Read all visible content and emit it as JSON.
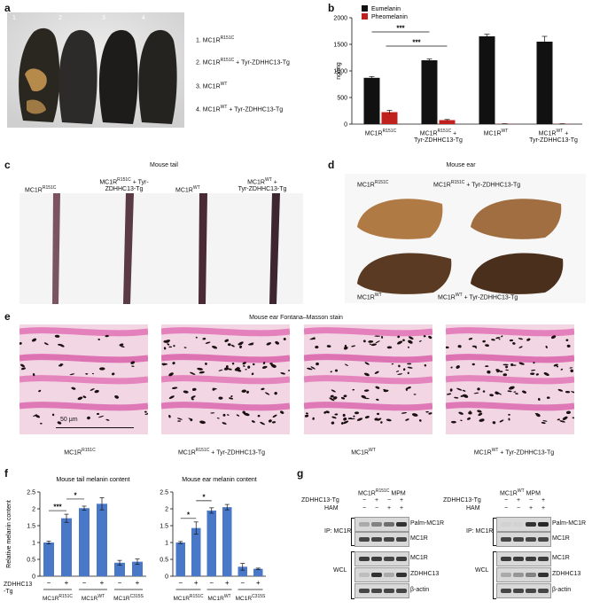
{
  "panels": {
    "a": {
      "label": "a",
      "mouse_numbers": [
        "1",
        "2",
        "3",
        "4"
      ],
      "legend": [
        {
          "num": "1.",
          "base": "MC1R",
          "sup": "R151C",
          "suffix": ""
        },
        {
          "num": "2.",
          "base": "MC1R",
          "sup": "R151C",
          "suffix": " + Tyr-ZDHHC13-Tg"
        },
        {
          "num": "3.",
          "base": "MC1R",
          "sup": "WT",
          "suffix": ""
        },
        {
          "num": "4.",
          "base": "MC1R",
          "sup": "WT",
          "suffix": " + Tyr-ZDHHC13-Tg"
        }
      ]
    },
    "b": {
      "label": "b",
      "significance": [
        "***",
        "***"
      ]
    },
    "c": {
      "label": "c",
      "title": "Mouse tail",
      "labels": [
        {
          "l1": "MC1R",
          "s1": "R151C",
          "l2": ""
        },
        {
          "l1": "MC1R",
          "s1": "R151C",
          "l1b": " + Tyr-",
          "l2": "ZDHHC13-Tg"
        },
        {
          "l1": "MC1R",
          "s1": "WT",
          "l2": ""
        },
        {
          "l1": "MC1R",
          "s1": "WT",
          "l1b": " +",
          "l2": "Tyr-ZDHHC13-Tg"
        }
      ]
    },
    "d": {
      "label": "d",
      "title": "Mouse ear",
      "labels": [
        {
          "base": "MC1R",
          "sup": "R151C",
          "suffix": ""
        },
        {
          "base": "MC1R",
          "sup": "R151C",
          "suffix": " + Tyr-ZDHHC13-Tg"
        },
        {
          "base": "MC1R",
          "sup": "WT",
          "suffix": ""
        },
        {
          "base": "MC1R",
          "sup": "WT",
          "suffix": " + Tyr-ZDHHC13-Tg"
        }
      ]
    },
    "e": {
      "label": "e",
      "title": "Mouse ear Fontana–Masson stain",
      "scale_bar": "50 μm",
      "labels": [
        {
          "base": "MC1R",
          "sup": "R151C",
          "suffix": ""
        },
        {
          "base": "MC1R",
          "sup": "R151C",
          "suffix": " + Tyr-ZDHHC13-Tg"
        },
        {
          "base": "MC1R",
          "sup": "WT",
          "suffix": ""
        },
        {
          "base": "MC1R",
          "sup": "WT",
          "suffix": " + Tyr-ZDHHC13-Tg"
        }
      ]
    },
    "f": {
      "label": "f",
      "row_label_1": "ZDHHC13",
      "row_label_2": "-Tg",
      "signs": [
        "−",
        "+",
        "−",
        "+",
        "−",
        "+"
      ],
      "group_labels": [
        {
          "base": "MC1R",
          "sup": "R151C"
        },
        {
          "base": "MC1R",
          "sup": "WT"
        },
        {
          "base": "MC1R",
          "sup": "C315S"
        }
      ]
    },
    "g": {
      "label": "g",
      "blots": [
        {
          "title_base": "MC1R",
          "title_sup": "R151C",
          "title_suffix": " MPM",
          "row_labels": [
            "ZDHHC13-Tg",
            "HAM"
          ],
          "zdhhc_signs": [
            "−",
            "+",
            "−",
            "+"
          ],
          "ham_signs": [
            "−",
            "−",
            "+",
            "+"
          ],
          "ip_label": "IP: MC1R",
          "wcl_label": "WCL",
          "band_labels": [
            "Palm-MC1R",
            "MC1R",
            "MC1R",
            "ZDHHC13",
            "β-actin"
          ]
        },
        {
          "title_base": "MC1R",
          "title_sup": "WT",
          "title_suffix": " MPM",
          "row_labels": [
            "ZDHHC13-Tg",
            "HAM"
          ],
          "zdhhc_signs": [
            "−",
            "+",
            "−",
            "+"
          ],
          "ham_signs": [
            "−",
            "−",
            "+",
            "+"
          ],
          "ip_label": "IP: MC1R",
          "wcl_label": "WCL",
          "band_labels": [
            "Palm-MC1R",
            "MC1R",
            "MC1R",
            "ZDHHC13",
            "β-actin"
          ]
        }
      ]
    }
  },
  "chart_data": [
    {
      "type": "bar",
      "panel": "b",
      "ylabel": "ng/mg",
      "ylim": [
        0,
        2000
      ],
      "yticks": [
        0,
        500,
        1000,
        1500,
        2000
      ],
      "categories": [
        "MC1R^R151C",
        "MC1R^R151C + Tyr-ZDHHC13-Tg",
        "MC1R^WT",
        "MC1R^WT + Tyr-ZDHHC13-Tg"
      ],
      "category_labels": [
        {
          "l1": "MC1R",
          "s1": "R151C",
          "l2": ""
        },
        {
          "l1": "MC1R",
          "s1": "R151C",
          "l1b": " +",
          "l2": "Tyr-ZDHHC13-Tg"
        },
        {
          "l1": "MC1R",
          "s1": "WT",
          "l2": ""
        },
        {
          "l1": "MC1R",
          "s1": "WT",
          "l1b": " +",
          "l2": "Tyr-ZDHHC13-Tg"
        }
      ],
      "legend_position": "top-left",
      "series": [
        {
          "name": "Eumelanin",
          "color": "#111111",
          "values": [
            870,
            1200,
            1650,
            1550
          ],
          "errors": [
            25,
            25,
            40,
            100
          ]
        },
        {
          "name": "Pheomelanin",
          "color": "#c0201e",
          "values": [
            225,
            75,
            5,
            5
          ],
          "errors": [
            35,
            12,
            2,
            2
          ]
        }
      ]
    },
    {
      "type": "bar",
      "panel": "f-left",
      "title": "Mouse tail melanin content",
      "ylabel": "Relative melanin content",
      "ylim": [
        0,
        2.5
      ],
      "yticks": [
        0,
        0.5,
        1,
        1.5,
        2,
        2.5
      ],
      "color": "#4a78c8",
      "values": [
        1.0,
        1.72,
        2.02,
        2.15,
        0.4,
        0.43
      ],
      "errors": [
        0.04,
        0.12,
        0.06,
        0.18,
        0.07,
        0.08
      ],
      "significance": [
        {
          "from": 0,
          "to": 1,
          "label": "***"
        },
        {
          "from": 1,
          "to": 2,
          "label": "*"
        }
      ]
    },
    {
      "type": "bar",
      "panel": "f-right",
      "title": "Mouse ear melanin content",
      "ylim": [
        0,
        2.5
      ],
      "yticks": [
        0,
        0.5,
        1,
        1.5,
        2,
        2.5
      ],
      "color": "#4a78c8",
      "values": [
        1.0,
        1.43,
        1.95,
        2.05,
        0.28,
        0.22
      ],
      "errors": [
        0.03,
        0.18,
        0.08,
        0.08,
        0.1,
        0.02
      ],
      "significance": [
        {
          "from": 0,
          "to": 1,
          "label": "*"
        },
        {
          "from": 1,
          "to": 2,
          "label": "*"
        }
      ]
    }
  ]
}
